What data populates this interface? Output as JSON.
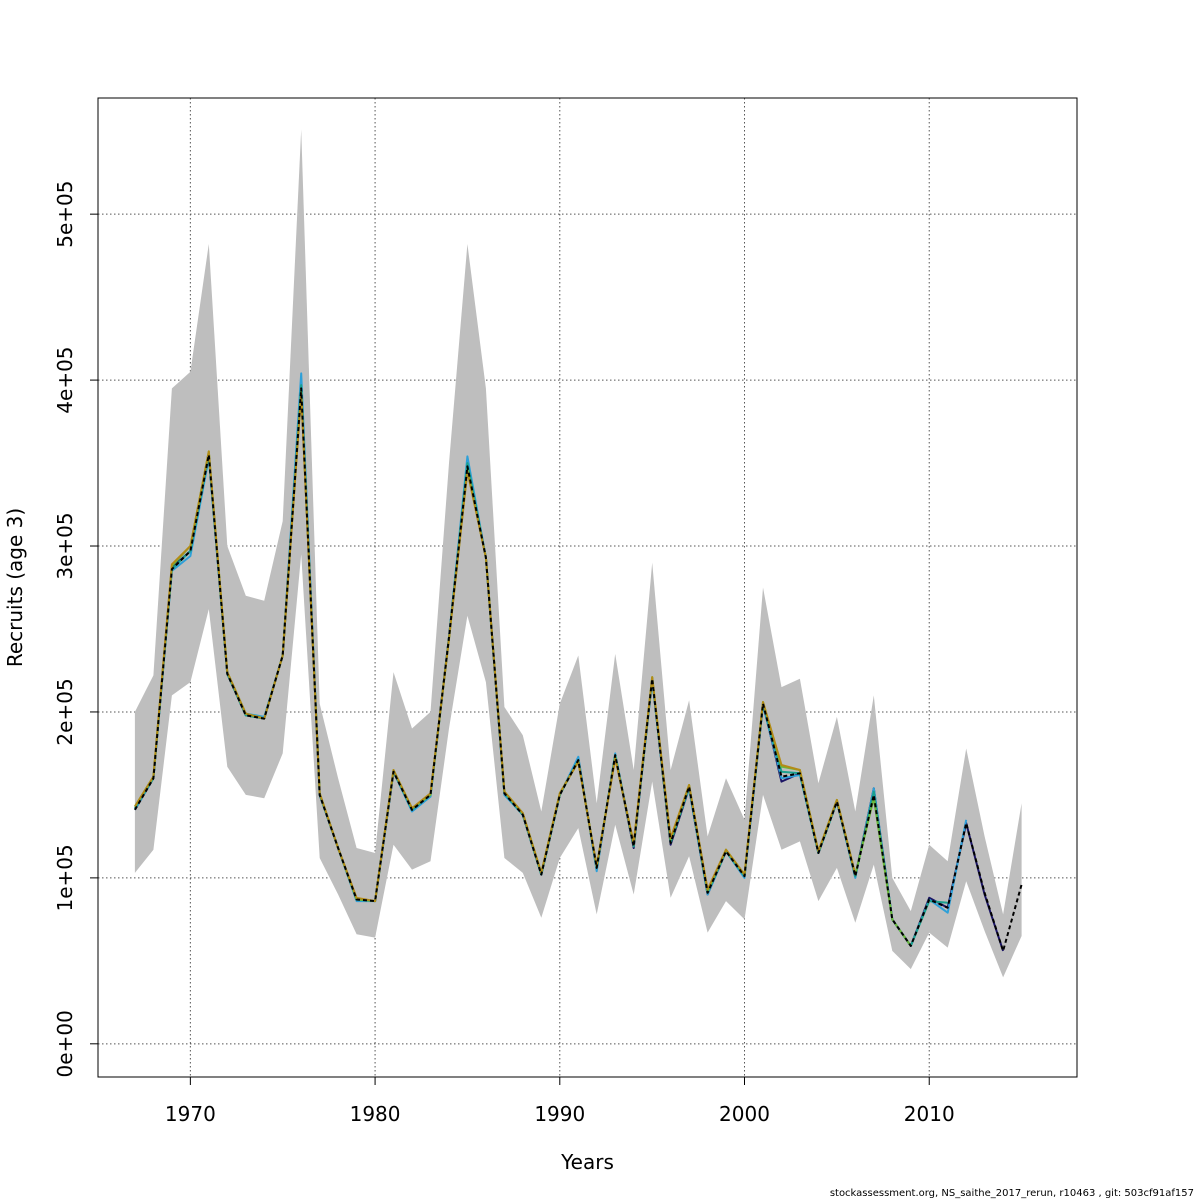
{
  "chart_data": {
    "type": "line",
    "title": "",
    "xlabel": "Years",
    "ylabel": "Recruits (age 3)",
    "xlim": [
      1965,
      2018
    ],
    "ylim": [
      -20000,
      570000
    ],
    "grid": true,
    "x_ticks": [
      1970,
      1980,
      1990,
      2000,
      2010
    ],
    "x_tick_labels": [
      "1970",
      "1980",
      "1990",
      "2000",
      "2010"
    ],
    "y_ticks": [
      0,
      100000,
      200000,
      300000,
      400000,
      500000
    ],
    "y_tick_labels": [
      "0e+00",
      "1e+05",
      "2e+05",
      "3e+05",
      "4e+05",
      "5e+05"
    ],
    "years": [
      1967,
      1968,
      1969,
      1970,
      1971,
      1972,
      1973,
      1974,
      1975,
      1976,
      1977,
      1978,
      1979,
      1980,
      1981,
      1982,
      1983,
      1984,
      1985,
      1986,
      1987,
      1988,
      1989,
      1990,
      1991,
      1992,
      1993,
      1994,
      1995,
      1996,
      1997,
      1998,
      1999,
      2000,
      2001,
      2002,
      2003,
      2004,
      2005,
      2006,
      2007,
      2008,
      2009,
      2010,
      2011,
      2012,
      2013,
      2014,
      2015
    ],
    "ci_upper": [
      200000,
      222000,
      395000,
      405000,
      482000,
      300000,
      270000,
      267000,
      315000,
      551000,
      205000,
      160000,
      118000,
      115000,
      224000,
      190000,
      200000,
      350000,
      482000,
      395000,
      203000,
      186000,
      140000,
      205000,
      234000,
      145000,
      235000,
      165000,
      290000,
      165000,
      207000,
      125000,
      160000,
      135000,
      275000,
      215000,
      220000,
      157000,
      197000,
      140000,
      210000,
      100000,
      80000,
      120000,
      110000,
      178000,
      125000,
      78000,
      145000
    ],
    "ci_lower": [
      103000,
      117000,
      210000,
      218000,
      262000,
      167000,
      150000,
      148000,
      175000,
      295000,
      112000,
      90000,
      66000,
      64000,
      120000,
      105000,
      110000,
      190000,
      258000,
      218000,
      112000,
      103000,
      76000,
      112000,
      130000,
      78000,
      132000,
      90000,
      158000,
      88000,
      113000,
      67000,
      86000,
      75000,
      150000,
      117000,
      122000,
      86000,
      106000,
      73000,
      108000,
      56000,
      45000,
      67000,
      58000,
      98000,
      68000,
      40000,
      65000
    ],
    "series": [
      {
        "color": "#000000",
        "dash": true,
        "values": [
          141000,
          160000,
          286000,
          297000,
          355000,
          223000,
          198000,
          196000,
          234000,
          395000,
          150000,
          118000,
          87000,
          86000,
          164000,
          141000,
          150000,
          245000,
          348000,
          293000,
          151000,
          138000,
          102000,
          150000,
          171000,
          106000,
          174000,
          119000,
          220000,
          121000,
          155000,
          91000,
          116000,
          101000,
          205000,
          161000,
          163000,
          115000,
          146000,
          101000,
          150000,
          75000,
          59000,
          87000,
          82000,
          133000,
          91000,
          56000,
          96000
        ]
      },
      {
        "color": "#1b1464",
        "values": [
          141000,
          160000,
          287000,
          297000,
          355000,
          223000,
          198000,
          196000,
          234000,
          395000,
          150000,
          118000,
          87000,
          86000,
          164000,
          141000,
          150000,
          245000,
          349000,
          293000,
          151000,
          138000,
          102000,
          150000,
          172000,
          105000,
          174000,
          118000,
          220000,
          120000,
          154000,
          90000,
          116000,
          101000,
          205000,
          158000,
          163000,
          115000,
          146000,
          101000,
          154000,
          75000,
          59000,
          88000,
          82000,
          133000,
          90000,
          56000,
          null
        ]
      },
      {
        "color": "#2ea0d8",
        "values": [
          141000,
          160000,
          285000,
          294000,
          353000,
          223000,
          199000,
          197000,
          234000,
          404000,
          150000,
          118000,
          86000,
          86000,
          164000,
          140000,
          149000,
          245000,
          354000,
          293000,
          150000,
          138000,
          102000,
          150000,
          173000,
          104000,
          175000,
          119000,
          219000,
          122000,
          154000,
          90000,
          116000,
          100000,
          204000,
          160000,
          162000,
          115000,
          146000,
          100000,
          154000,
          75000,
          59000,
          87000,
          79000,
          135000,
          null,
          null,
          null
        ]
      },
      {
        "color": "#1aa08e",
        "values": [
          142000,
          160000,
          286000,
          297000,
          355000,
          223000,
          198000,
          196000,
          234000,
          397000,
          150000,
          118000,
          87000,
          86000,
          164000,
          141000,
          150000,
          245000,
          350000,
          293000,
          151000,
          138000,
          102000,
          150000,
          171000,
          106000,
          174000,
          119000,
          220000,
          121000,
          155000,
          91000,
          116000,
          101000,
          205000,
          164000,
          163000,
          115000,
          146000,
          101000,
          152000,
          75000,
          59000,
          86000,
          85000,
          null,
          null,
          null,
          null
        ]
      },
      {
        "color": "#6bb838",
        "values": [
          143000,
          161000,
          288000,
          300000,
          357000,
          224000,
          199000,
          196000,
          234000,
          393000,
          151000,
          118000,
          87000,
          86000,
          165000,
          142000,
          150000,
          244000,
          346000,
          293000,
          152000,
          139000,
          103000,
          151000,
          170000,
          107000,
          173000,
          120000,
          221000,
          123000,
          156000,
          92000,
          117000,
          102000,
          206000,
          167000,
          165000,
          116000,
          147000,
          102000,
          148000,
          75000,
          59000,
          null,
          null,
          null,
          null,
          null,
          null
        ]
      },
      {
        "color": "#b38b16",
        "values": [
          143000,
          161000,
          289000,
          300000,
          357000,
          224000,
          199000,
          196000,
          234000,
          392000,
          151000,
          118000,
          88000,
          86000,
          165000,
          142000,
          151000,
          244000,
          345000,
          293000,
          152000,
          139000,
          103000,
          151000,
          170000,
          107000,
          172000,
          121000,
          221000,
          124000,
          156000,
          93000,
          117000,
          102000,
          206000,
          168000,
          165000,
          116000,
          147000,
          102000,
          null,
          null,
          null,
          null,
          null,
          null,
          null,
          null,
          null
        ]
      }
    ]
  },
  "footer": "stockassessment.org, NS_saithe_2017_rerun, r10463 , git: 503cf91af157"
}
